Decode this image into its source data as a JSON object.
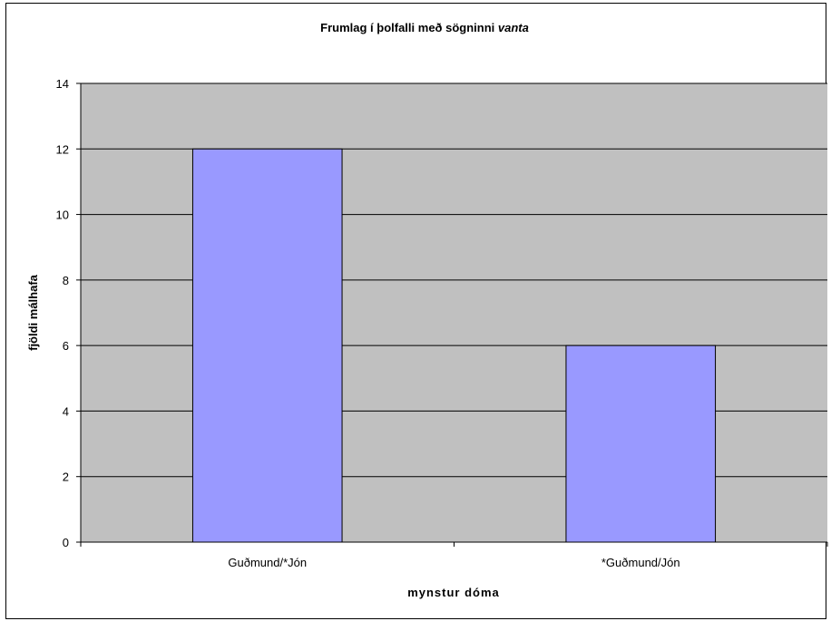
{
  "chart_data": {
    "type": "bar",
    "title": "Frumlag í þolfalli með sögninni ",
    "title_italic": "vanta",
    "xlabel": "mynstur dóma",
    "ylabel": "fjöldi málhafa",
    "categories": [
      "Guðmund/*Jón",
      "*Guðmund/Jón"
    ],
    "values": [
      12,
      6
    ],
    "ylim": [
      0,
      14
    ],
    "ytick_step": 2,
    "grid": true,
    "legend": "none",
    "colors": {
      "bar": "#9999ff",
      "plot_background": "#c0c0c0",
      "gridline": "#000000"
    }
  }
}
